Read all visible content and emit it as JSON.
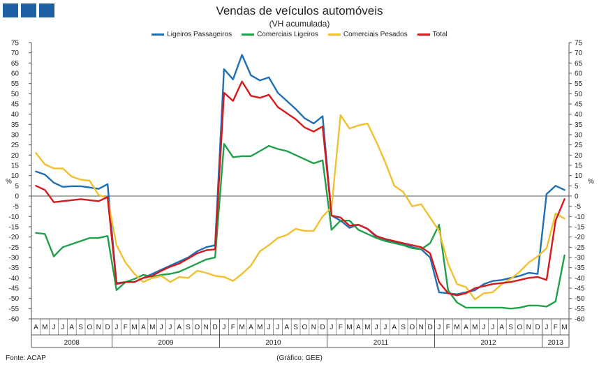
{
  "header": {
    "title": "Vendas de veículos automóveis",
    "subtitle": "(VH acumulada)"
  },
  "footer": {
    "source": "Fonte: ACAP",
    "credit": "(Gráfico: GEE)"
  },
  "colors": {
    "logo": "#1f5fa6",
    "ligeiros_passageiros": "#1f6fb5",
    "comerciais_ligeiros": "#21a04a",
    "comerciais_pesados": "#f0c030",
    "total": "#d7191c"
  },
  "chart_data": {
    "type": "line",
    "title": "Vendas de veículos automóveis",
    "subtitle": "(VH acumulada)",
    "ylabel": "%",
    "ylabel_right": "%",
    "ylim": [
      -60,
      75
    ],
    "ytick_step": 5,
    "grid": false,
    "legend_position": "top",
    "x_months": [
      "A",
      "M",
      "J",
      "J",
      "A",
      "S",
      "O",
      "N",
      "D",
      "J",
      "F",
      "M",
      "A",
      "M",
      "J",
      "J",
      "A",
      "S",
      "O",
      "N",
      "D",
      "J",
      "F",
      "M",
      "A",
      "M",
      "J",
      "J",
      "A",
      "S",
      "O",
      "N",
      "D",
      "J",
      "F",
      "M",
      "A",
      "M",
      "J",
      "J",
      "A",
      "S",
      "O",
      "N",
      "D",
      "J",
      "F",
      "M",
      "A",
      "M",
      "J",
      "J",
      "A",
      "S",
      "O",
      "N",
      "D",
      "J",
      "F",
      "M"
    ],
    "year_groups": [
      {
        "label": "2008",
        "start": 0,
        "end": 8
      },
      {
        "label": "2009",
        "start": 9,
        "end": 20
      },
      {
        "label": "2010",
        "start": 21,
        "end": 32
      },
      {
        "label": "2011",
        "start": 33,
        "end": 44
      },
      {
        "label": "2012",
        "start": 45,
        "end": 56
      },
      {
        "label": "2013",
        "start": 57,
        "end": 59
      }
    ],
    "series": [
      {
        "name": "Ligeiros Passageiros",
        "color": "#1f6fb5",
        "values": [
          12,
          10.5,
          6.5,
          4.5,
          4.8,
          4.8,
          4.2,
          3.5,
          5.8,
          -42.5,
          -42,
          -42,
          -40,
          -38,
          -36,
          -34,
          -32,
          -30,
          -27,
          -25,
          -24,
          62,
          57,
          69,
          59,
          56.5,
          58,
          50.5,
          46.5,
          42.5,
          38,
          35.5,
          39,
          -9.5,
          -12,
          -15.5,
          -14,
          -16,
          -20,
          -21.5,
          -22.5,
          -23.5,
          -25,
          -26,
          -30,
          -47,
          -47.5,
          -48,
          -47,
          -46,
          -43,
          -41.5,
          -41,
          -40,
          -39,
          -37.5,
          -38,
          1,
          5,
          3
        ]
      },
      {
        "name": "Comerciais Ligeiros",
        "color": "#21a04a",
        "values": [
          -18,
          -18.5,
          -29.5,
          -25,
          -23.5,
          -22,
          -20.5,
          -20.5,
          -19.5,
          -46,
          -42,
          -40.5,
          -38.5,
          -39.5,
          -38.5,
          -38,
          -37,
          -35,
          -33,
          -31,
          -30,
          25.5,
          19,
          19.5,
          19.5,
          22,
          24.5,
          23,
          22,
          20,
          18,
          16,
          17.5,
          -16.5,
          -12,
          -12,
          -16.5,
          -18.5,
          -20.5,
          -22,
          -23,
          -24,
          -25.5,
          -26,
          -23,
          -14,
          -46,
          -52,
          -54.5,
          -54.5,
          -54.5,
          -54.5,
          -54.5,
          -55,
          -54.5,
          -53.5,
          -53.5,
          -54,
          -51.5,
          -29
        ]
      },
      {
        "name": "Comerciais Pesados",
        "color": "#f0c030",
        "values": [
          21,
          15.5,
          13.5,
          13.5,
          9.5,
          8,
          7.5,
          0.5,
          -1,
          -24,
          -32.5,
          -38,
          -42,
          -40,
          -39,
          -42,
          -39.5,
          -40,
          -36.5,
          -37.5,
          -39,
          -39.5,
          -41.5,
          -38,
          -34,
          -27,
          -24,
          -20.5,
          -19,
          -16,
          -17,
          -17,
          -10,
          -5.5,
          39.5,
          33,
          34.5,
          35.5,
          26.5,
          16.5,
          5,
          2,
          -5,
          -4,
          -10.5,
          -17,
          -33,
          -43,
          -44.5,
          -50.5,
          -47.5,
          -47,
          -43,
          -40.5,
          -37,
          -32.5,
          -29.5,
          -25.5,
          -8.5,
          -11
        ]
      },
      {
        "name": "Total",
        "color": "#d7191c",
        "values": [
          5,
          3,
          -3,
          -2.5,
          -2,
          -1.5,
          -2,
          -2.5,
          -0.5,
          -43,
          -42,
          -42,
          -40,
          -39,
          -36.5,
          -34.5,
          -33,
          -30.5,
          -28,
          -26.5,
          -26,
          50.5,
          46.5,
          56,
          49,
          48,
          49.5,
          43.5,
          40.5,
          37.5,
          33.5,
          31.5,
          34,
          -9.5,
          -10.5,
          -14.5,
          -14,
          -16,
          -19.5,
          -21,
          -22,
          -23,
          -24,
          -25,
          -28,
          -42,
          -47.5,
          -48.5,
          -47.5,
          -45,
          -44,
          -43,
          -42.5,
          -42,
          -41,
          -40,
          -39.5,
          -41,
          -12,
          -1.5
        ]
      }
    ]
  }
}
